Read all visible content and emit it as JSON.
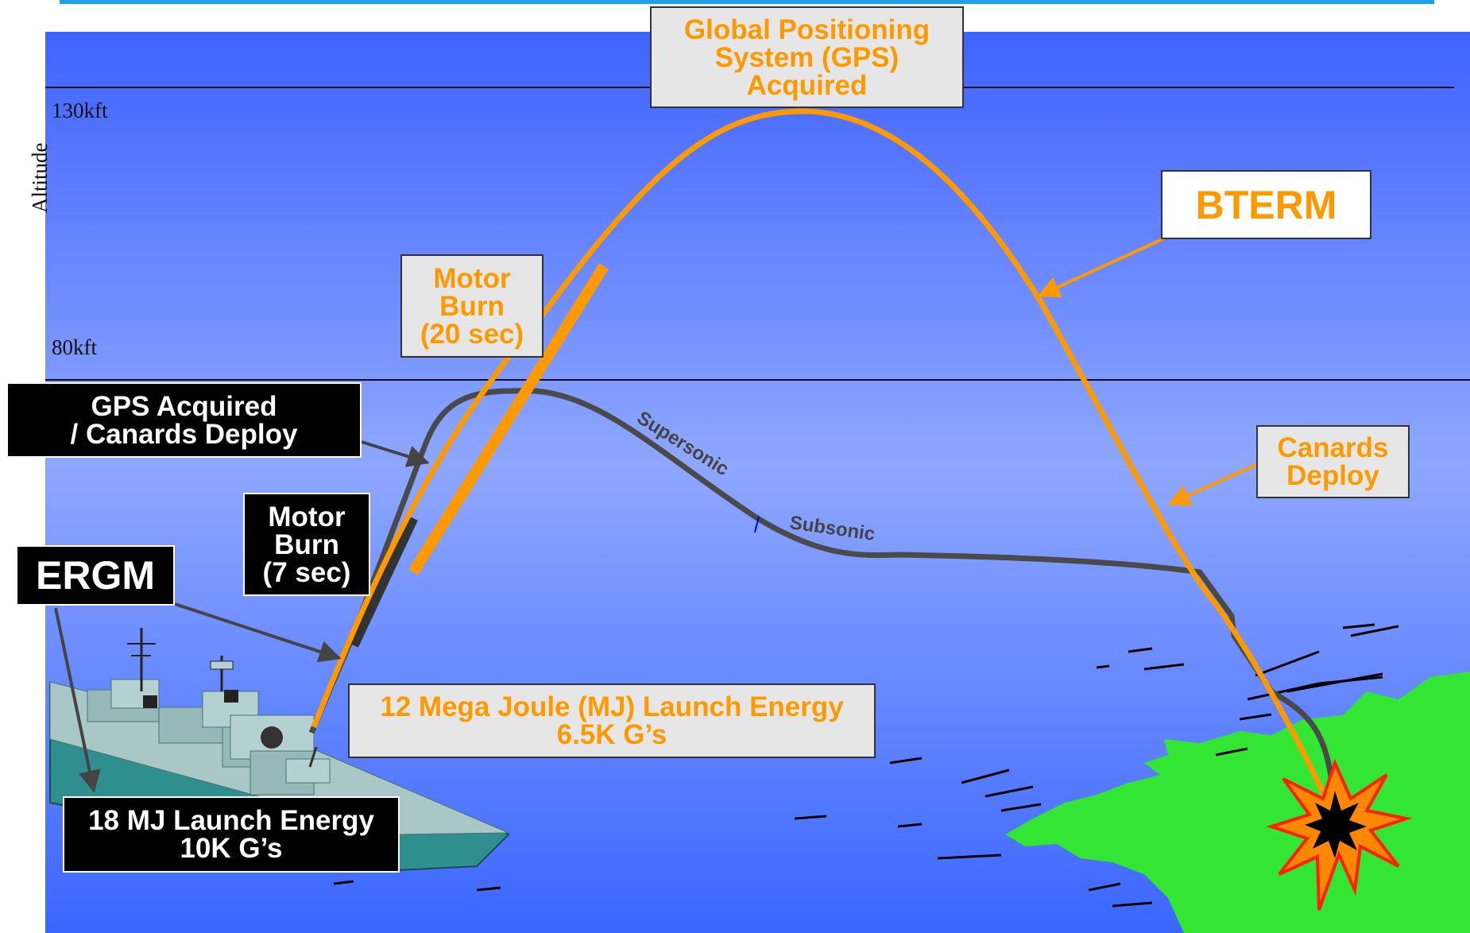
{
  "colors": {
    "sky_top": "#3f63ff",
    "sky_mid": "#8aa3ff",
    "sea": "#3a68ff",
    "bterm_trajectory": "#ff9900",
    "ergm_trajectory": "#4a4a4a",
    "land": "#33e633",
    "top_rule": "#1fa0f0"
  },
  "altitude": {
    "axis_label": "Altitude",
    "tick_130": "130kft",
    "tick_80": "80kft"
  },
  "labels": {
    "gps_acquired_top": "Global Positioning\nSystem (GPS)\nAcquired",
    "bterm": "BTERM",
    "motor_burn_20": "Motor\nBurn\n(20 sec)",
    "gps_canards_deploy": "GPS Acquired\n/ Canards Deploy",
    "canards_deploy": "Canards\nDeploy",
    "motor_burn_7": "Motor\nBurn\n(7 sec)",
    "ergm": "ERGM",
    "launch_energy_12": "12 Mega Joule (MJ) Launch Energy\n6.5K G’s",
    "launch_energy_18": "18 MJ Launch Energy\n10K G’s",
    "supersonic": "Supersonic",
    "subsonic": "Subsonic"
  }
}
